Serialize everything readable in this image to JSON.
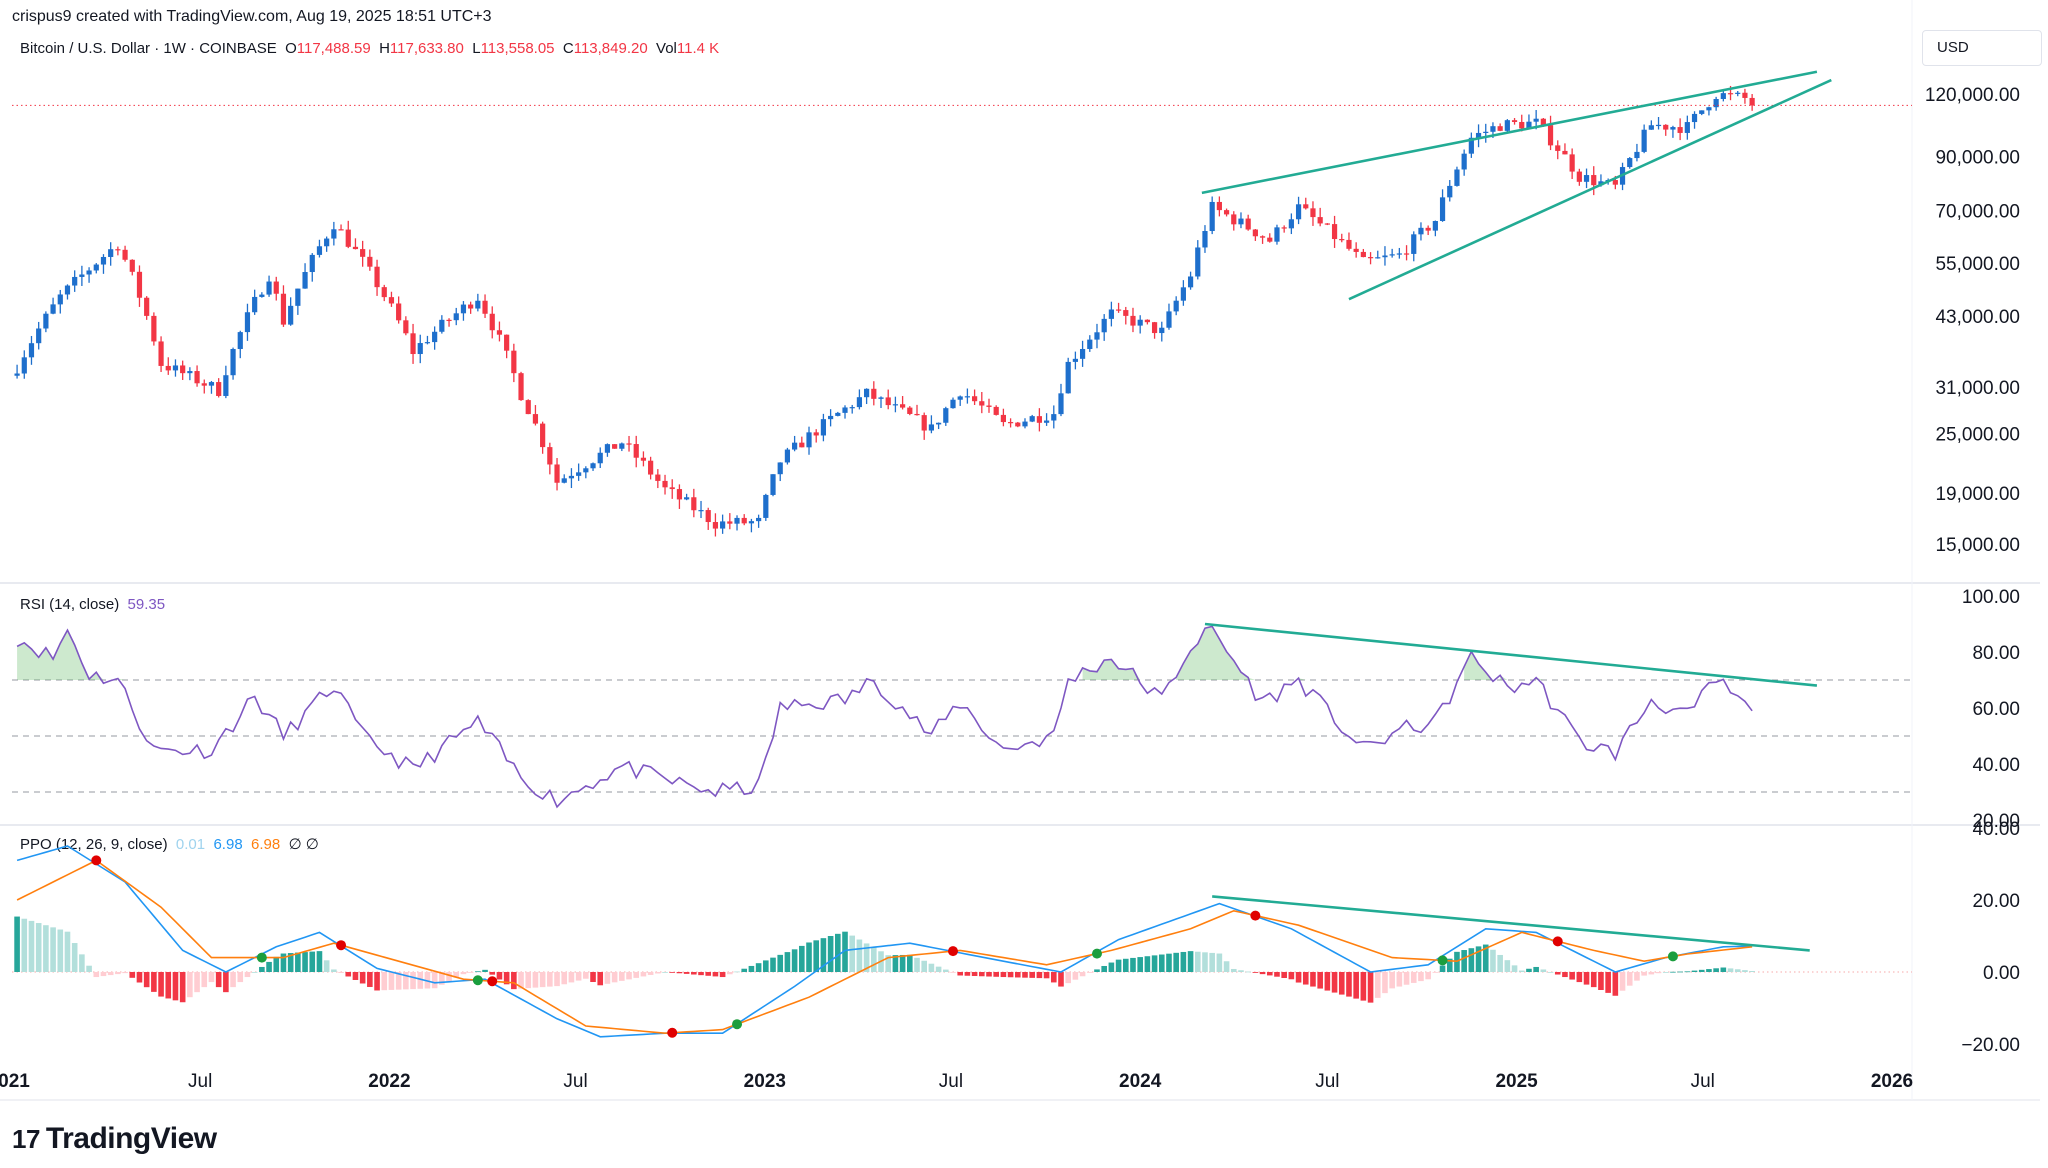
{
  "header": {
    "text": "crispus9 created with TradingView.com, Aug 19, 2025 18:51 UTC+3"
  },
  "legend": {
    "symbol": "Bitcoin / U.S. Dollar · 1W · COINBASE",
    "o_label": "O",
    "o": "117,488.59",
    "h_label": "H",
    "h": "117,633.80",
    "l_label": "L",
    "l": "113,558.05",
    "c_label": "C",
    "c": "113,849.20",
    "vol_label": "Vol",
    "vol": "11.4 K"
  },
  "currency": "USD",
  "rsi_legend": {
    "name": "RSI (14, close)",
    "value": "59.35"
  },
  "ppo_legend": {
    "name": "PPO (12, 26, 9, close)",
    "v1": "0.01",
    "v2": "6.98",
    "v3": "6.98",
    "sym": "∅ ∅"
  },
  "logo": {
    "mark": "17",
    "text": "TradingView"
  },
  "colors": {
    "up": "#1e6fcc",
    "down": "#f23645",
    "trend": "#22ab94",
    "rsi": "#7e57c2",
    "ppo": "#2196f3",
    "signal": "#ff7f0e"
  },
  "chart_data": [
    {
      "type": "candlestick",
      "title": "Bitcoin / U.S. Dollar · 1W · COINBASE",
      "scale": "log",
      "y_ticks": [
        "120,000.00",
        "90,000.00",
        "70,000.00",
        "55,000.00",
        "43,000.00",
        "31,000.00",
        "25,000.00",
        "19,000.00",
        "15,000.00"
      ],
      "y_tick_values": [
        120000,
        90000,
        70000,
        55000,
        43000,
        31000,
        25000,
        19000,
        15000
      ],
      "x_ticks": [
        "021",
        "Jul",
        "2022",
        "Jul",
        "2023",
        "Jul",
        "2024",
        "Jul",
        "2025",
        "Jul",
        "2026"
      ],
      "x_tick_dates": [
        "2021-01-01",
        "2021-07-01",
        "2022-01-01",
        "2022-07-01",
        "2023-01-01",
        "2023-07-01",
        "2024-01-01",
        "2024-07-01",
        "2025-01-01",
        "2025-07-01",
        "2026-01-01"
      ],
      "close_anchors": [
        [
          "2021-01-04",
          34000
        ],
        [
          "2021-02-15",
          47000
        ],
        [
          "2021-04-12",
          60000
        ],
        [
          "2021-05-24",
          34500
        ],
        [
          "2021-07-19",
          30500
        ],
        [
          "2021-09-06",
          52000
        ],
        [
          "2021-09-20",
          42000
        ],
        [
          "2021-11-08",
          66000
        ],
        [
          "2022-01-24",
          36500
        ],
        [
          "2022-03-28",
          47000
        ],
        [
          "2022-05-09",
          30000
        ],
        [
          "2022-06-13",
          20000
        ],
        [
          "2022-08-15",
          24000
        ],
        [
          "2022-09-26",
          19300
        ],
        [
          "2022-11-14",
          16500
        ],
        [
          "2022-12-26",
          16600
        ],
        [
          "2023-01-16",
          22000
        ],
        [
          "2023-03-20",
          28000
        ],
        [
          "2023-04-10",
          30000
        ],
        [
          "2023-06-12",
          25500
        ],
        [
          "2023-07-10",
          30500
        ],
        [
          "2023-08-21",
          26000
        ],
        [
          "2023-10-09",
          27500
        ],
        [
          "2023-10-23",
          34500
        ],
        [
          "2023-12-04",
          43500
        ],
        [
          "2024-01-22",
          40000
        ],
        [
          "2024-02-19",
          52000
        ],
        [
          "2024-03-11",
          71000
        ],
        [
          "2024-05-06",
          61000
        ],
        [
          "2024-06-03",
          71000
        ],
        [
          "2024-08-05",
          55000
        ],
        [
          "2024-09-09",
          57000
        ],
        [
          "2024-10-14",
          67000
        ],
        [
          "2024-11-18",
          98000
        ],
        [
          "2024-12-16",
          104000
        ],
        [
          "2025-01-20",
          105000
        ],
        [
          "2025-03-03",
          82000
        ],
        [
          "2025-04-07",
          78000
        ],
        [
          "2025-05-12",
          104000
        ],
        [
          "2025-06-16",
          103000
        ],
        [
          "2025-07-14",
          120000
        ],
        [
          "2025-08-11",
          117500
        ],
        [
          "2025-08-18",
          113849
        ]
      ],
      "price_line": 113849.2,
      "trendlines": [
        {
          "name": "wedge-upper",
          "from": [
            "2024-03-01",
            76000
          ],
          "to": [
            "2025-10-20",
            133000
          ]
        },
        {
          "name": "wedge-lower",
          "from": [
            "2024-07-22",
            46500
          ],
          "to": [
            "2025-11-03",
            128000
          ]
        }
      ]
    },
    {
      "type": "line",
      "title": "RSI (14, close)",
      "last_value": 59.35,
      "ylim": [
        20,
        100
      ],
      "y_ticks": [
        "100.00",
        "80.00",
        "60.00",
        "40.00",
        "20.00"
      ],
      "levels": [
        70,
        50,
        30
      ],
      "anchors": [
        [
          "2021-01-04",
          85
        ],
        [
          "2021-02-08",
          78
        ],
        [
          "2021-02-22",
          88
        ],
        [
          "2021-03-15",
          72
        ],
        [
          "2021-04-12",
          70
        ],
        [
          "2021-05-17",
          45
        ],
        [
          "2021-07-12",
          45
        ],
        [
          "2021-08-23",
          64
        ],
        [
          "2021-09-20",
          50
        ],
        [
          "2021-11-08",
          68
        ],
        [
          "2021-12-06",
          50
        ],
        [
          "2022-01-24",
          38
        ],
        [
          "2022-03-28",
          55
        ],
        [
          "2022-05-09",
          35
        ],
        [
          "2022-06-13",
          27
        ],
        [
          "2022-08-15",
          39
        ],
        [
          "2022-10-10",
          33
        ],
        [
          "2022-11-14",
          30
        ],
        [
          "2022-12-26",
          32
        ],
        [
          "2023-01-16",
          60
        ],
        [
          "2023-03-20",
          63
        ],
        [
          "2023-04-17",
          70
        ],
        [
          "2023-06-12",
          50
        ],
        [
          "2023-07-10",
          62
        ],
        [
          "2023-08-21",
          45
        ],
        [
          "2023-10-09",
          50
        ],
        [
          "2023-10-23",
          70
        ],
        [
          "2023-12-04",
          78
        ],
        [
          "2024-01-22",
          63
        ],
        [
          "2024-02-19",
          82
        ],
        [
          "2024-03-11",
          88
        ],
        [
          "2024-04-29",
          62
        ],
        [
          "2024-06-03",
          70
        ],
        [
          "2024-08-05",
          45
        ],
        [
          "2024-09-09",
          52
        ],
        [
          "2024-10-14",
          55
        ],
        [
          "2024-11-18",
          78
        ],
        [
          "2024-12-23",
          67
        ],
        [
          "2025-01-20",
          70
        ],
        [
          "2025-03-03",
          48
        ],
        [
          "2025-04-07",
          44
        ],
        [
          "2025-05-12",
          63
        ],
        [
          "2025-06-16",
          57
        ],
        [
          "2025-07-14",
          70
        ],
        [
          "2025-08-18",
          59
        ]
      ],
      "trendline": {
        "from": [
          "2024-03-04",
          90
        ],
        "to": [
          "2025-10-20",
          68
        ]
      }
    },
    {
      "type": "line",
      "title": "PPO (12, 26, 9, close)",
      "ylim": [
        -24,
        44
      ],
      "y_ticks": [
        "40.00",
        "20.00",
        "0.00",
        "−20.00"
      ],
      "series": [
        {
          "name": "0.01",
          "color": "#2196f3",
          "anchors": [
            [
              "2021-01-04",
              31
            ],
            [
              "2021-02-22",
              35
            ],
            [
              "2021-04-19",
              25
            ],
            [
              "2021-06-14",
              6
            ],
            [
              "2021-07-26",
              0
            ],
            [
              "2021-09-13",
              7
            ],
            [
              "2021-10-25",
              11
            ],
            [
              "2021-12-20",
              1
            ],
            [
              "2022-02-14",
              -3
            ],
            [
              "2022-04-04",
              -2
            ],
            [
              "2022-06-13",
              -13
            ],
            [
              "2022-07-25",
              -18
            ],
            [
              "2022-09-26",
              -17
            ],
            [
              "2022-11-21",
              -17
            ],
            [
              "2023-01-30",
              -4
            ],
            [
              "2023-03-20",
              6
            ],
            [
              "2023-05-22",
              8
            ],
            [
              "2023-08-21",
              3
            ],
            [
              "2023-10-16",
              0
            ],
            [
              "2023-12-11",
              9
            ],
            [
              "2024-03-18",
              19
            ],
            [
              "2024-05-27",
              12
            ],
            [
              "2024-08-12",
              0
            ],
            [
              "2024-10-07",
              2
            ],
            [
              "2024-12-02",
              12
            ],
            [
              "2025-01-20",
              11
            ],
            [
              "2025-04-07",
              0
            ],
            [
              "2025-05-26",
              4
            ],
            [
              "2025-07-21",
              7
            ],
            [
              "2025-08-18",
              7.2
            ]
          ]
        },
        {
          "name": "6.98",
          "color": "#ff7f0e",
          "anchors": [
            [
              "2021-01-04",
              20
            ],
            [
              "2021-03-22",
              31
            ],
            [
              "2021-05-24",
              18
            ],
            [
              "2021-07-12",
              4
            ],
            [
              "2021-09-20",
              4
            ],
            [
              "2021-11-08",
              8
            ],
            [
              "2022-01-10",
              3
            ],
            [
              "2022-03-14",
              -2
            ],
            [
              "2022-05-02",
              -3
            ],
            [
              "2022-07-11",
              -15
            ],
            [
              "2022-09-26",
              -17
            ],
            [
              "2022-11-21",
              -16
            ],
            [
              "2023-02-13",
              -7
            ],
            [
              "2023-05-01",
              4
            ],
            [
              "2023-07-10",
              6
            ],
            [
              "2023-10-02",
              2
            ],
            [
              "2023-12-04",
              6
            ],
            [
              "2024-02-19",
              12
            ],
            [
              "2024-04-01",
              17
            ],
            [
              "2024-06-03",
              13
            ],
            [
              "2024-09-02",
              4
            ],
            [
              "2024-11-04",
              3
            ],
            [
              "2025-01-06",
              11
            ],
            [
              "2025-03-17",
              6
            ],
            [
              "2025-05-05",
              3
            ],
            [
              "2025-06-16",
              5
            ],
            [
              "2025-08-18",
              7
            ]
          ]
        }
      ],
      "trendline": {
        "from": [
          "2024-03-11",
          21
        ],
        "to": [
          "2025-10-13",
          6
        ]
      }
    }
  ]
}
